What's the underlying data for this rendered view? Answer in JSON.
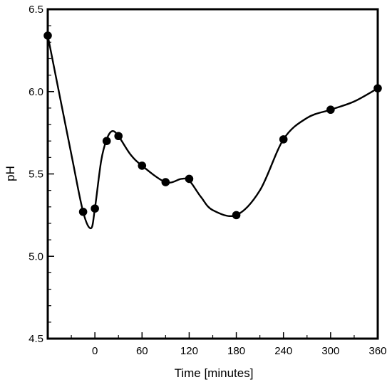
{
  "chart_data": {
    "type": "line",
    "title": "",
    "xlabel": "Time [minutes]",
    "ylabel": "pH",
    "x_ticks": [
      "0",
      "60",
      "120",
      "180",
      "240",
      "300",
      "360"
    ],
    "y_ticks": [
      "4.5",
      "5.0",
      "5.5",
      "6.0",
      "6.5"
    ],
    "xlim": [
      -60,
      360
    ],
    "ylim": [
      4.5,
      6.5
    ],
    "grid": false,
    "series": [
      {
        "marker": "filled-circle",
        "color": "#000000",
        "x": [
          -60,
          -15,
          0,
          15,
          30,
          60,
          90,
          120,
          180,
          240,
          300,
          360
        ],
        "y": [
          6.34,
          5.27,
          5.29,
          5.7,
          5.73,
          5.55,
          5.45,
          5.47,
          5.25,
          5.71,
          5.89,
          6.02
        ]
      }
    ],
    "smooth_curve": {
      "x": [
        -60,
        -30,
        -15,
        -5,
        0,
        8,
        15,
        22,
        30,
        45,
        60,
        90,
        110,
        120,
        135,
        150,
        180,
        210,
        240,
        270,
        300,
        330,
        360
      ],
      "y": [
        6.34,
        5.62,
        5.27,
        5.17,
        5.29,
        5.58,
        5.71,
        5.76,
        5.73,
        5.62,
        5.55,
        5.45,
        5.47,
        5.46,
        5.36,
        5.28,
        5.25,
        5.4,
        5.71,
        5.84,
        5.89,
        5.94,
        6.02
      ]
    }
  }
}
